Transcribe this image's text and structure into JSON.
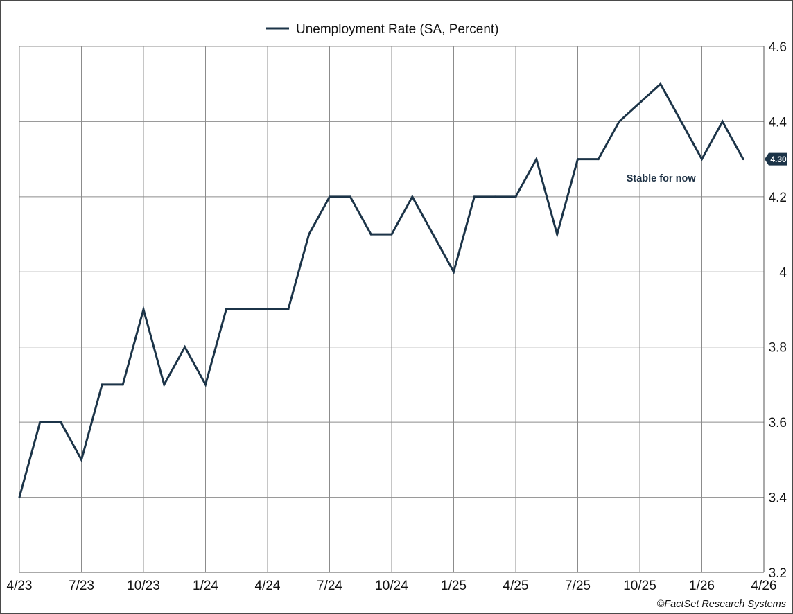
{
  "chart_data": {
    "type": "line",
    "legend": {
      "label": "Unemployment Rate (SA, Percent)",
      "placement": "top-center"
    },
    "series": [
      {
        "name": "Unemployment Rate (SA, Percent)",
        "color": "#1c3448",
        "points": [
          {
            "x": "2023-04",
            "y": 3.4
          },
          {
            "x": "2023-05",
            "y": 3.6
          },
          {
            "x": "2023-06",
            "y": 3.6
          },
          {
            "x": "2023-07",
            "y": 3.5
          },
          {
            "x": "2023-08",
            "y": 3.7
          },
          {
            "x": "2023-09",
            "y": 3.7
          },
          {
            "x": "2023-10",
            "y": 3.9
          },
          {
            "x": "2023-11",
            "y": 3.7
          },
          {
            "x": "2023-12",
            "y": 3.8
          },
          {
            "x": "2024-01",
            "y": 3.7
          },
          {
            "x": "2024-02",
            "y": 3.9
          },
          {
            "x": "2024-03",
            "y": 3.9
          },
          {
            "x": "2024-04",
            "y": 3.9
          },
          {
            "x": "2024-05",
            "y": 3.9
          },
          {
            "x": "2024-06",
            "y": 4.1
          },
          {
            "x": "2024-07",
            "y": 4.2
          },
          {
            "x": "2024-08",
            "y": 4.2
          },
          {
            "x": "2024-09",
            "y": 4.1
          },
          {
            "x": "2024-10",
            "y": 4.1
          },
          {
            "x": "2024-11",
            "y": 4.2
          },
          {
            "x": "2024-12",
            "y": 4.1
          },
          {
            "x": "2025-01",
            "y": 4.0
          },
          {
            "x": "2025-02",
            "y": 4.2
          },
          {
            "x": "2025-03",
            "y": 4.2
          },
          {
            "x": "2025-04",
            "y": 4.2
          },
          {
            "x": "2025-05",
            "y": 4.3
          },
          {
            "x": "2025-06",
            "y": 4.1
          },
          {
            "x": "2025-07",
            "y": 4.3
          },
          {
            "x": "2025-08",
            "y": 4.3
          },
          {
            "x": "2025-09",
            "y": 4.4
          },
          {
            "x": "2025-11",
            "y": 4.5
          },
          {
            "x": "2025-12",
            "y": 4.4
          },
          {
            "x": "2026-01",
            "y": 4.3
          },
          {
            "x": "2026-02",
            "y": 4.4
          },
          {
            "x": "2026-03",
            "y": 4.3
          }
        ]
      }
    ],
    "x_axis": {
      "range": [
        "2023-04",
        "2026-04"
      ],
      "ticks": [
        {
          "x": "2023-04",
          "label": "4/23"
        },
        {
          "x": "2023-07",
          "label": "7/23"
        },
        {
          "x": "2023-10",
          "label": "10/23"
        },
        {
          "x": "2024-01",
          "label": "1/24"
        },
        {
          "x": "2024-04",
          "label": "4/24"
        },
        {
          "x": "2024-07",
          "label": "7/24"
        },
        {
          "x": "2024-10",
          "label": "10/24"
        },
        {
          "x": "2025-01",
          "label": "1/25"
        },
        {
          "x": "2025-04",
          "label": "4/25"
        },
        {
          "x": "2025-07",
          "label": "7/25"
        },
        {
          "x": "2025-10",
          "label": "10/25"
        },
        {
          "x": "2026-01",
          "label": "1/26"
        },
        {
          "x": "2026-04",
          "label": "4/26"
        }
      ]
    },
    "y_axis": {
      "range": [
        3.2,
        4.6
      ],
      "position": "right",
      "ticks": [
        {
          "y": 3.2,
          "label": "3.2"
        },
        {
          "y": 3.4,
          "label": "3.4"
        },
        {
          "y": 3.6,
          "label": "3.6"
        },
        {
          "y": 3.8,
          "label": "3.8"
        },
        {
          "y": 4.0,
          "label": "4"
        },
        {
          "y": 4.2,
          "label": "4.2"
        },
        {
          "y": 4.4,
          "label": "4.4"
        },
        {
          "y": 4.6,
          "label": "4.6"
        }
      ]
    },
    "grid": true,
    "last_value_badge": {
      "label": "4.30",
      "y": 4.3,
      "color": "#1c3448"
    },
    "annotations": [
      {
        "text": "Stable for now",
        "x": "2025-12",
        "y": 4.25
      }
    ]
  },
  "credit": "©FactSet Research Systems"
}
